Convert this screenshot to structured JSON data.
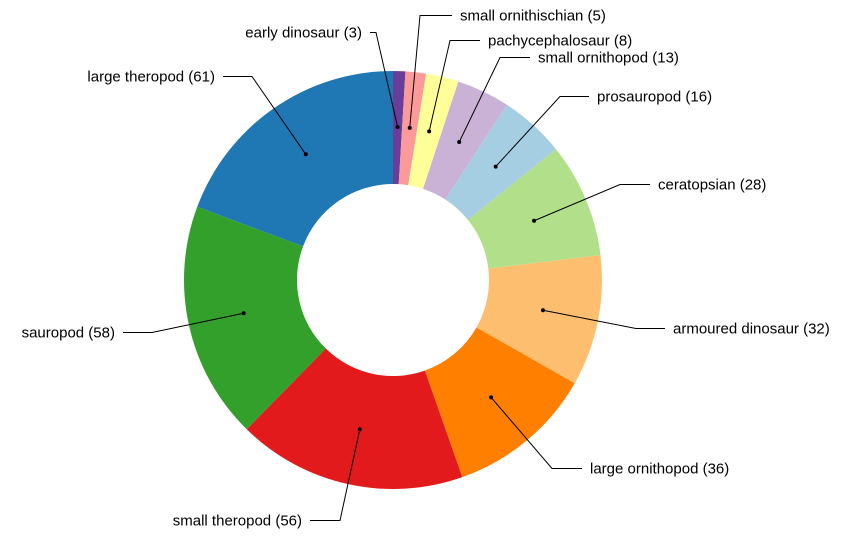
{
  "chart_data": {
    "type": "pie",
    "variant": "donut",
    "title": "",
    "slices": [
      {
        "label": "early dinosaur",
        "value": 3,
        "display": "early dinosaur (3)",
        "color": "#6a3d9a"
      },
      {
        "label": "small ornithischian",
        "value": 5,
        "display": "small ornithischian (5)",
        "color": "#fb9a99"
      },
      {
        "label": "pachycephalosaur",
        "value": 8,
        "display": "pachycephalosaur (8)",
        "color": "#ffff99"
      },
      {
        "label": "small ornithopod",
        "value": 13,
        "display": "small ornithopod (13)",
        "color": "#cab2d6"
      },
      {
        "label": "prosauropod",
        "value": 16,
        "display": "prosauropod (16)",
        "color": "#a6cee3"
      },
      {
        "label": "ceratopsian",
        "value": 28,
        "display": "ceratopsian (28)",
        "color": "#b2df8a"
      },
      {
        "label": "armoured dinosaur",
        "value": 32,
        "display": "armoured dinosaur (32)",
        "color": "#fdbf6f"
      },
      {
        "label": "large ornithopod",
        "value": 36,
        "display": "large ornithopod (36)",
        "color": "#ff7f00"
      },
      {
        "label": "small theropod",
        "value": 56,
        "display": "small theropod (56)",
        "color": "#e31a1c"
      },
      {
        "label": "sauropod",
        "value": 58,
        "display": "sauropod (58)",
        "color": "#33a02c"
      },
      {
        "label": "large theropod",
        "value": 61,
        "display": "large theropod (61)",
        "color": "#1f78b4"
      }
    ],
    "legend": "none",
    "labels": "outside with leader lines"
  }
}
